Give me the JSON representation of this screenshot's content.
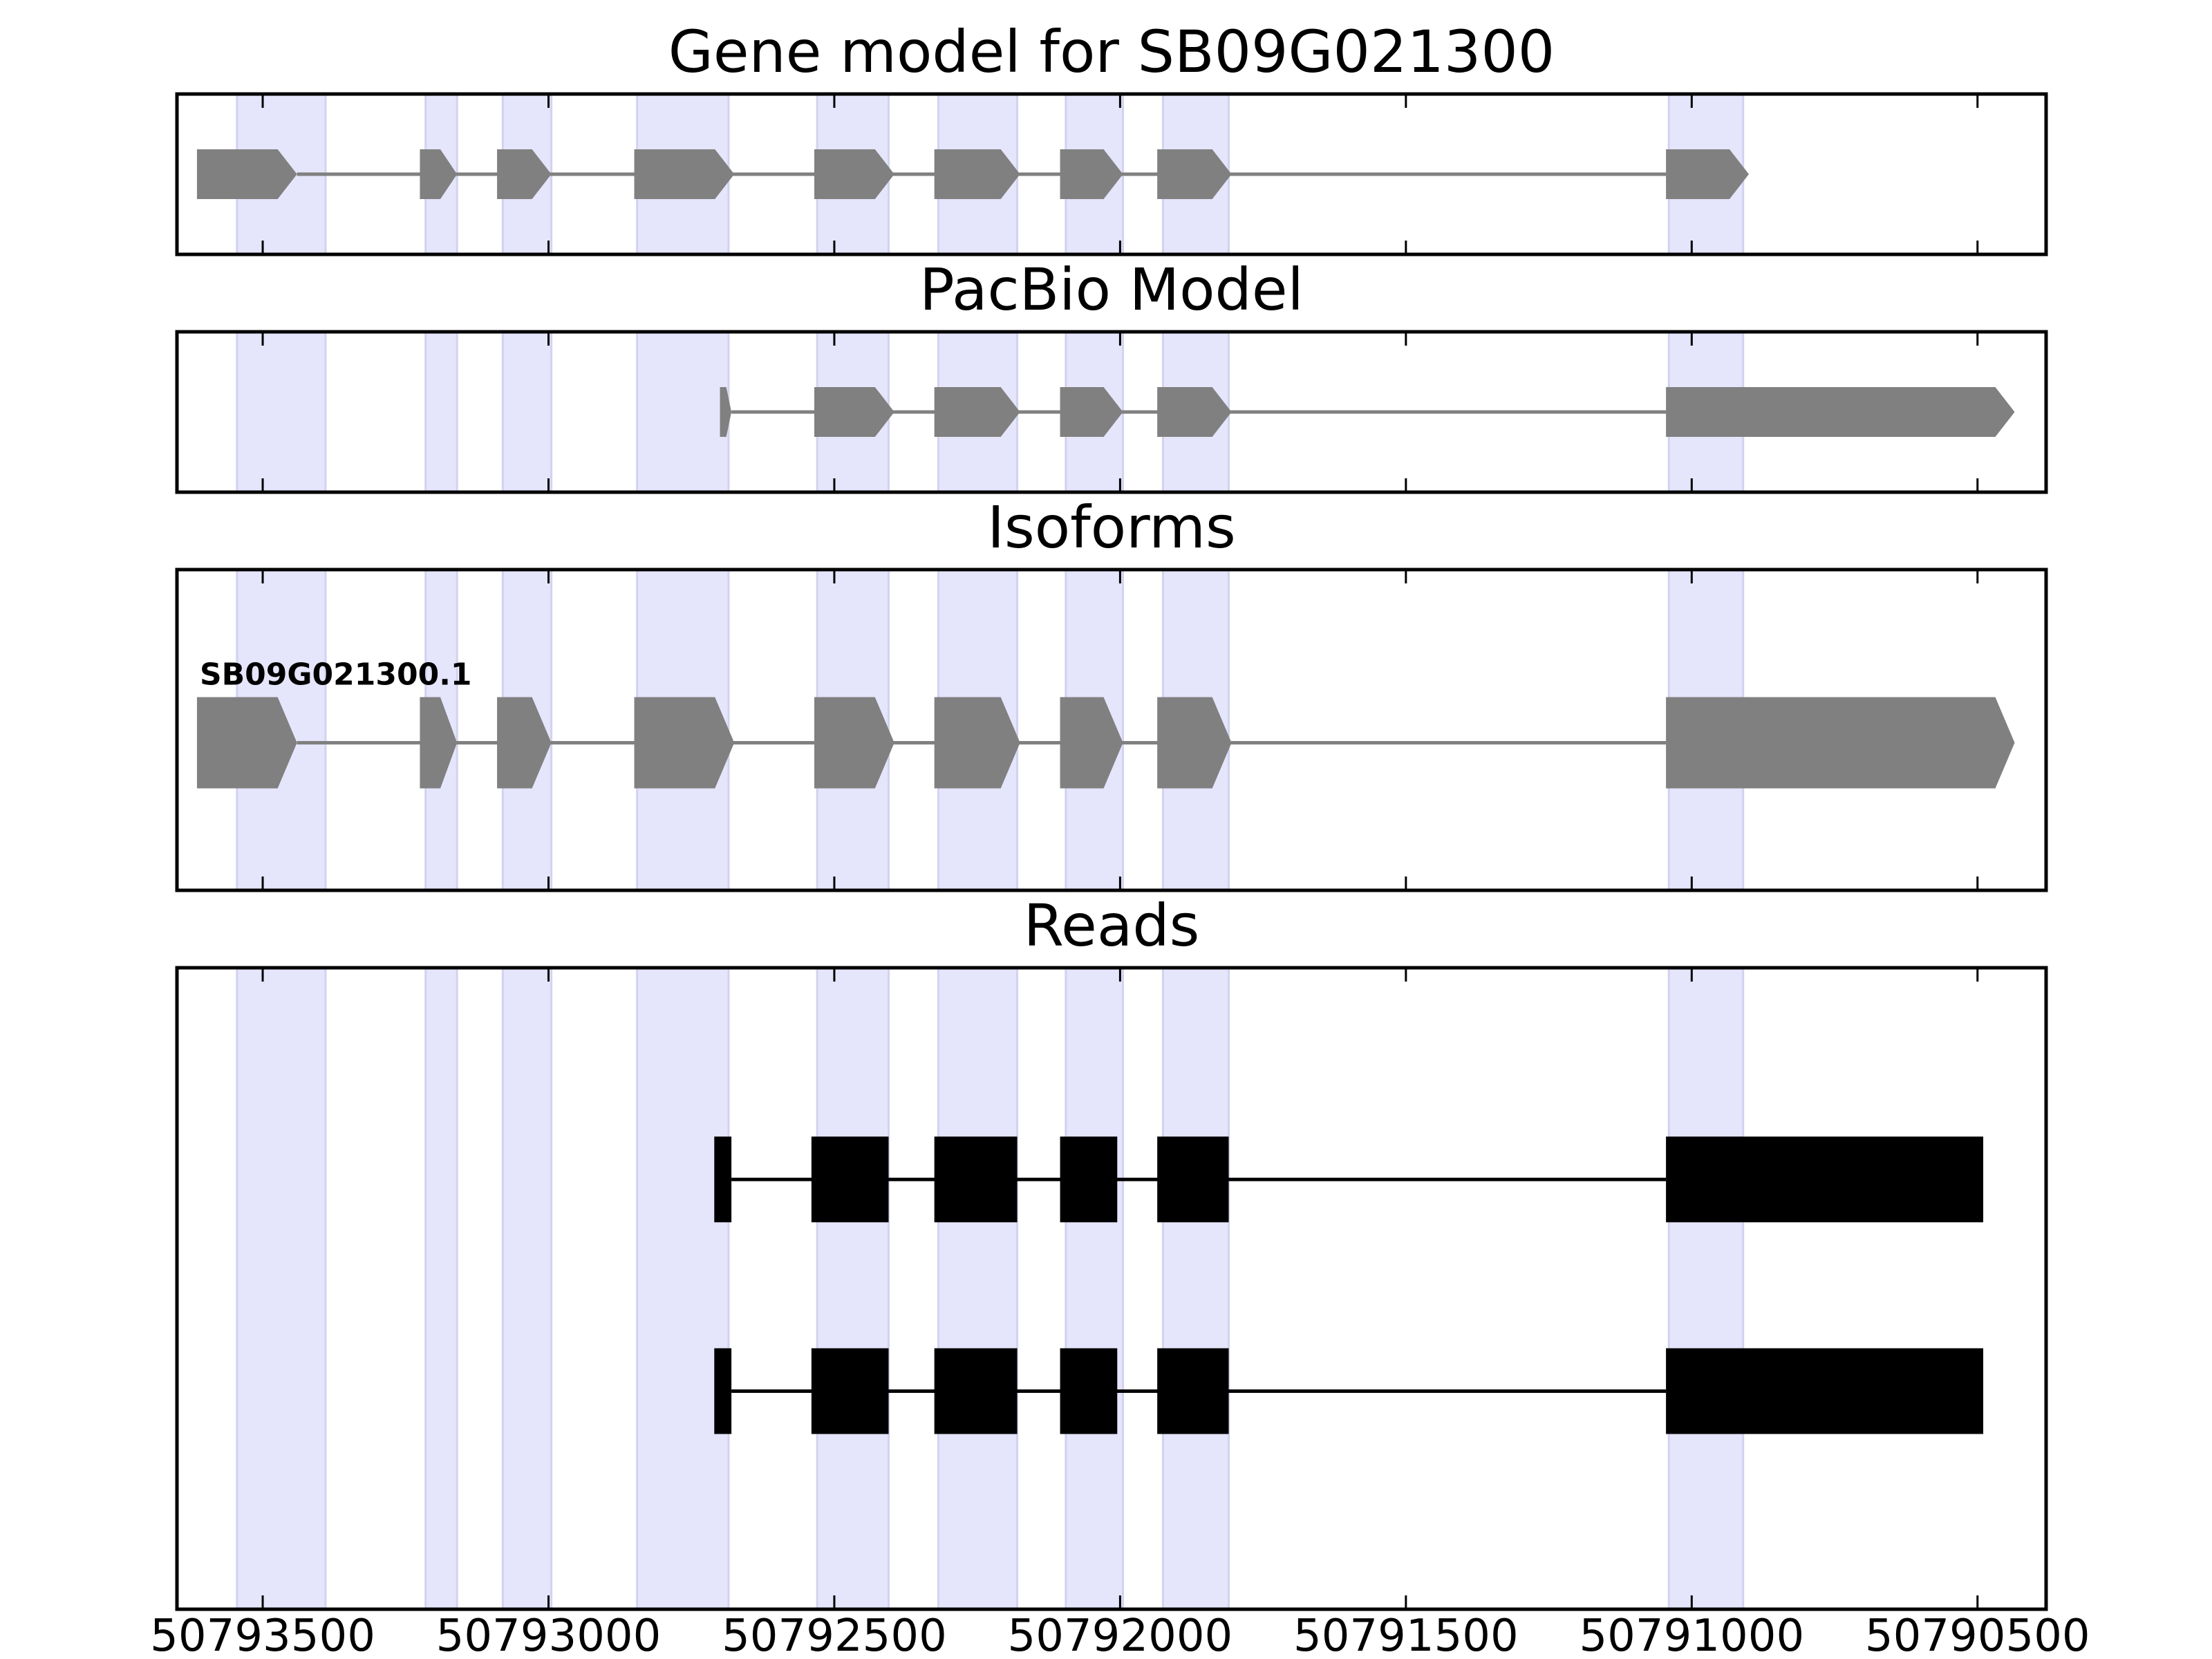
{
  "figure": {
    "axis": {
      "ticks": [
        50793500,
        50793000,
        50792500,
        50792000,
        50791500,
        50791000,
        50790500
      ],
      "range": [
        50793650,
        50790380
      ],
      "reversed": true
    },
    "highlight_color": "#e5e5fb",
    "exon_regions": [
      [
        50793545,
        50793390
      ],
      [
        50793215,
        50793160
      ],
      [
        50793080,
        50792995
      ],
      [
        50792845,
        50792685
      ],
      [
        50792530,
        50792405
      ],
      [
        50792318,
        50792180
      ],
      [
        50792095,
        50791995
      ],
      [
        50791925,
        50791810
      ],
      [
        50791040,
        50790910
      ]
    ],
    "panels": [
      {
        "id": "gene-model",
        "title": "Gene model for SB09G021300",
        "color": "#808080",
        "features": [
          {
            "label": "",
            "exons": [
              [
                50793615,
                50793440
              ],
              [
                50793225,
                50793160
              ],
              [
                50793090,
                50792995
              ],
              [
                50792850,
                50792675
              ],
              [
                50792535,
                50792395
              ],
              [
                50792325,
                50792175
              ],
              [
                50792105,
                50791995
              ],
              [
                50791935,
                50791805
              ],
              [
                50791045,
                50790900
              ]
            ]
          }
        ]
      },
      {
        "id": "pacbio-model",
        "title": "PacBio Model",
        "color": "#808080",
        "features": [
          {
            "label": "",
            "exons": [
              [
                50792700,
                50792680
              ],
              [
                50792535,
                50792395
              ],
              [
                50792325,
                50792175
              ],
              [
                50792105,
                50791995
              ],
              [
                50791935,
                50791805
              ],
              [
                50791045,
                50790435
              ]
            ]
          }
        ]
      },
      {
        "id": "isoforms",
        "title": "Isoforms",
        "color": "#808080",
        "features": [
          {
            "label": "SB09G021300.1",
            "exons": [
              [
                50793615,
                50793440
              ],
              [
                50793225,
                50793160
              ],
              [
                50793090,
                50792995
              ],
              [
                50792850,
                50792675
              ],
              [
                50792535,
                50792395
              ],
              [
                50792325,
                50792175
              ],
              [
                50792105,
                50791995
              ],
              [
                50791935,
                50791805
              ],
              [
                50791045,
                50790435
              ]
            ]
          }
        ]
      },
      {
        "id": "reads",
        "title": "Reads",
        "color": "#000000",
        "features": [
          {
            "label": "",
            "exons": [
              [
                50792710,
                50792680
              ],
              [
                50792540,
                50792405
              ],
              [
                50792325,
                50792180
              ],
              [
                50792105,
                50792005
              ],
              [
                50791935,
                50791810
              ],
              [
                50791045,
                50790490
              ]
            ]
          },
          {
            "label": "",
            "exons": [
              [
                50792710,
                50792680
              ],
              [
                50792540,
                50792405
              ],
              [
                50792325,
                50792180
              ],
              [
                50792105,
                50792005
              ],
              [
                50791935,
                50791810
              ],
              [
                50791045,
                50790490
              ]
            ]
          }
        ]
      }
    ]
  }
}
